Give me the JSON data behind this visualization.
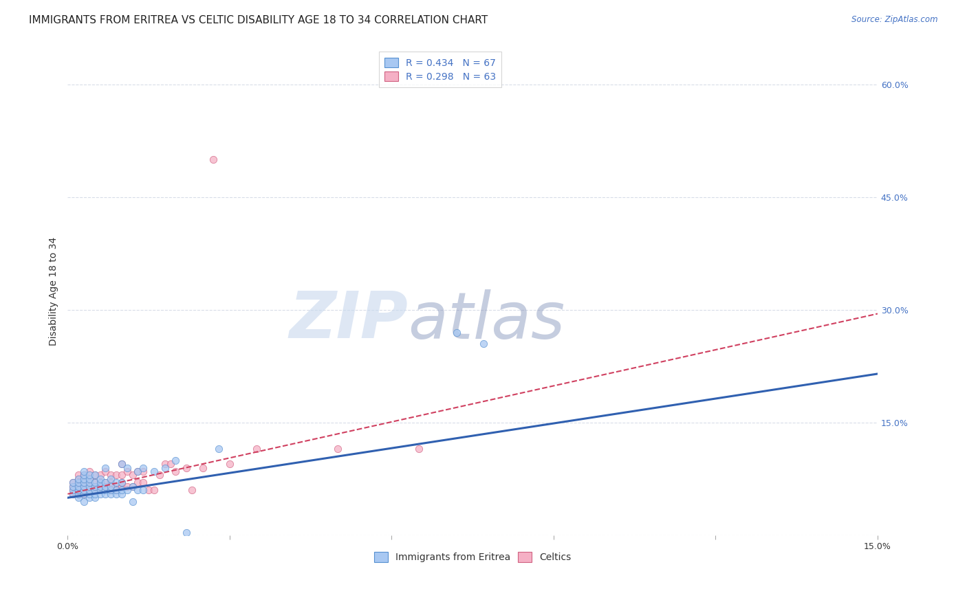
{
  "title": "IMMIGRANTS FROM ERITREA VS CELTIC DISABILITY AGE 18 TO 34 CORRELATION CHART",
  "source": "Source: ZipAtlas.com",
  "ylabel": "Disability Age 18 to 34",
  "xlim": [
    0.0,
    0.15
  ],
  "ylim": [
    0.0,
    0.65
  ],
  "legend_items": [
    {
      "label": "R = 0.434   N = 67",
      "color": "#aac8f0"
    },
    {
      "label": "R = 0.298   N = 63",
      "color": "#f4aabe"
    }
  ],
  "legend_bottom": [
    {
      "label": "Immigrants from Eritrea",
      "color": "#aac8f0"
    },
    {
      "label": "Celtics",
      "color": "#f4aabe"
    }
  ],
  "eritrea_scatter_x": [
    0.001,
    0.001,
    0.001,
    0.001,
    0.002,
    0.002,
    0.002,
    0.002,
    0.002,
    0.002,
    0.003,
    0.003,
    0.003,
    0.003,
    0.003,
    0.003,
    0.003,
    0.003,
    0.004,
    0.004,
    0.004,
    0.004,
    0.004,
    0.004,
    0.004,
    0.005,
    0.005,
    0.005,
    0.005,
    0.005,
    0.005,
    0.006,
    0.006,
    0.006,
    0.006,
    0.006,
    0.007,
    0.007,
    0.007,
    0.007,
    0.007,
    0.008,
    0.008,
    0.008,
    0.008,
    0.009,
    0.009,
    0.009,
    0.01,
    0.01,
    0.01,
    0.01,
    0.011,
    0.011,
    0.012,
    0.012,
    0.013,
    0.013,
    0.014,
    0.014,
    0.016,
    0.018,
    0.02,
    0.022,
    0.028,
    0.072,
    0.077
  ],
  "eritrea_scatter_y": [
    0.055,
    0.06,
    0.065,
    0.07,
    0.05,
    0.055,
    0.06,
    0.065,
    0.07,
    0.075,
    0.045,
    0.055,
    0.06,
    0.065,
    0.07,
    0.075,
    0.08,
    0.085,
    0.05,
    0.055,
    0.06,
    0.065,
    0.07,
    0.075,
    0.08,
    0.05,
    0.055,
    0.06,
    0.065,
    0.07,
    0.08,
    0.055,
    0.06,
    0.065,
    0.07,
    0.075,
    0.055,
    0.06,
    0.065,
    0.07,
    0.09,
    0.055,
    0.06,
    0.065,
    0.075,
    0.055,
    0.06,
    0.07,
    0.055,
    0.06,
    0.07,
    0.095,
    0.06,
    0.09,
    0.045,
    0.065,
    0.06,
    0.085,
    0.06,
    0.09,
    0.085,
    0.09,
    0.1,
    0.004,
    0.115,
    0.27,
    0.255
  ],
  "celtic_scatter_x": [
    0.001,
    0.001,
    0.001,
    0.001,
    0.002,
    0.002,
    0.002,
    0.002,
    0.002,
    0.002,
    0.003,
    0.003,
    0.003,
    0.003,
    0.003,
    0.004,
    0.004,
    0.004,
    0.004,
    0.004,
    0.005,
    0.005,
    0.005,
    0.005,
    0.006,
    0.006,
    0.006,
    0.006,
    0.007,
    0.007,
    0.007,
    0.008,
    0.008,
    0.008,
    0.009,
    0.009,
    0.009,
    0.01,
    0.01,
    0.01,
    0.01,
    0.011,
    0.011,
    0.012,
    0.012,
    0.013,
    0.013,
    0.014,
    0.014,
    0.015,
    0.016,
    0.017,
    0.018,
    0.019,
    0.02,
    0.022,
    0.023,
    0.025,
    0.027,
    0.03,
    0.035,
    0.05,
    0.065
  ],
  "celtic_scatter_y": [
    0.055,
    0.06,
    0.065,
    0.07,
    0.055,
    0.06,
    0.065,
    0.07,
    0.075,
    0.08,
    0.055,
    0.06,
    0.065,
    0.07,
    0.08,
    0.06,
    0.065,
    0.07,
    0.075,
    0.085,
    0.06,
    0.065,
    0.07,
    0.08,
    0.06,
    0.065,
    0.07,
    0.08,
    0.065,
    0.07,
    0.085,
    0.06,
    0.07,
    0.08,
    0.06,
    0.065,
    0.08,
    0.065,
    0.07,
    0.08,
    0.095,
    0.065,
    0.085,
    0.065,
    0.08,
    0.07,
    0.085,
    0.07,
    0.085,
    0.06,
    0.06,
    0.08,
    0.095,
    0.095,
    0.085,
    0.09,
    0.06,
    0.09,
    0.5,
    0.095,
    0.115,
    0.115,
    0.115
  ],
  "eritrea_line_x": [
    0.0,
    0.15
  ],
  "eritrea_line_y": [
    0.05,
    0.215
  ],
  "celtic_line_x": [
    0.0,
    0.15
  ],
  "celtic_line_y": [
    0.055,
    0.295
  ],
  "scatter_size": 55,
  "eritrea_color": "#a8c8f2",
  "eritrea_edge": "#5590d0",
  "celtic_color": "#f5b0c5",
  "celtic_edge": "#d06080",
  "eritrea_line_color": "#3060b0",
  "celtic_line_color": "#d04060",
  "grid_color": "#d8dde8",
  "background_color": "#ffffff",
  "watermark_zip": "ZIP",
  "watermark_atlas": "atlas",
  "title_fontsize": 11,
  "axis_label_fontsize": 10,
  "tick_fontsize": 9,
  "legend_fontsize": 10
}
